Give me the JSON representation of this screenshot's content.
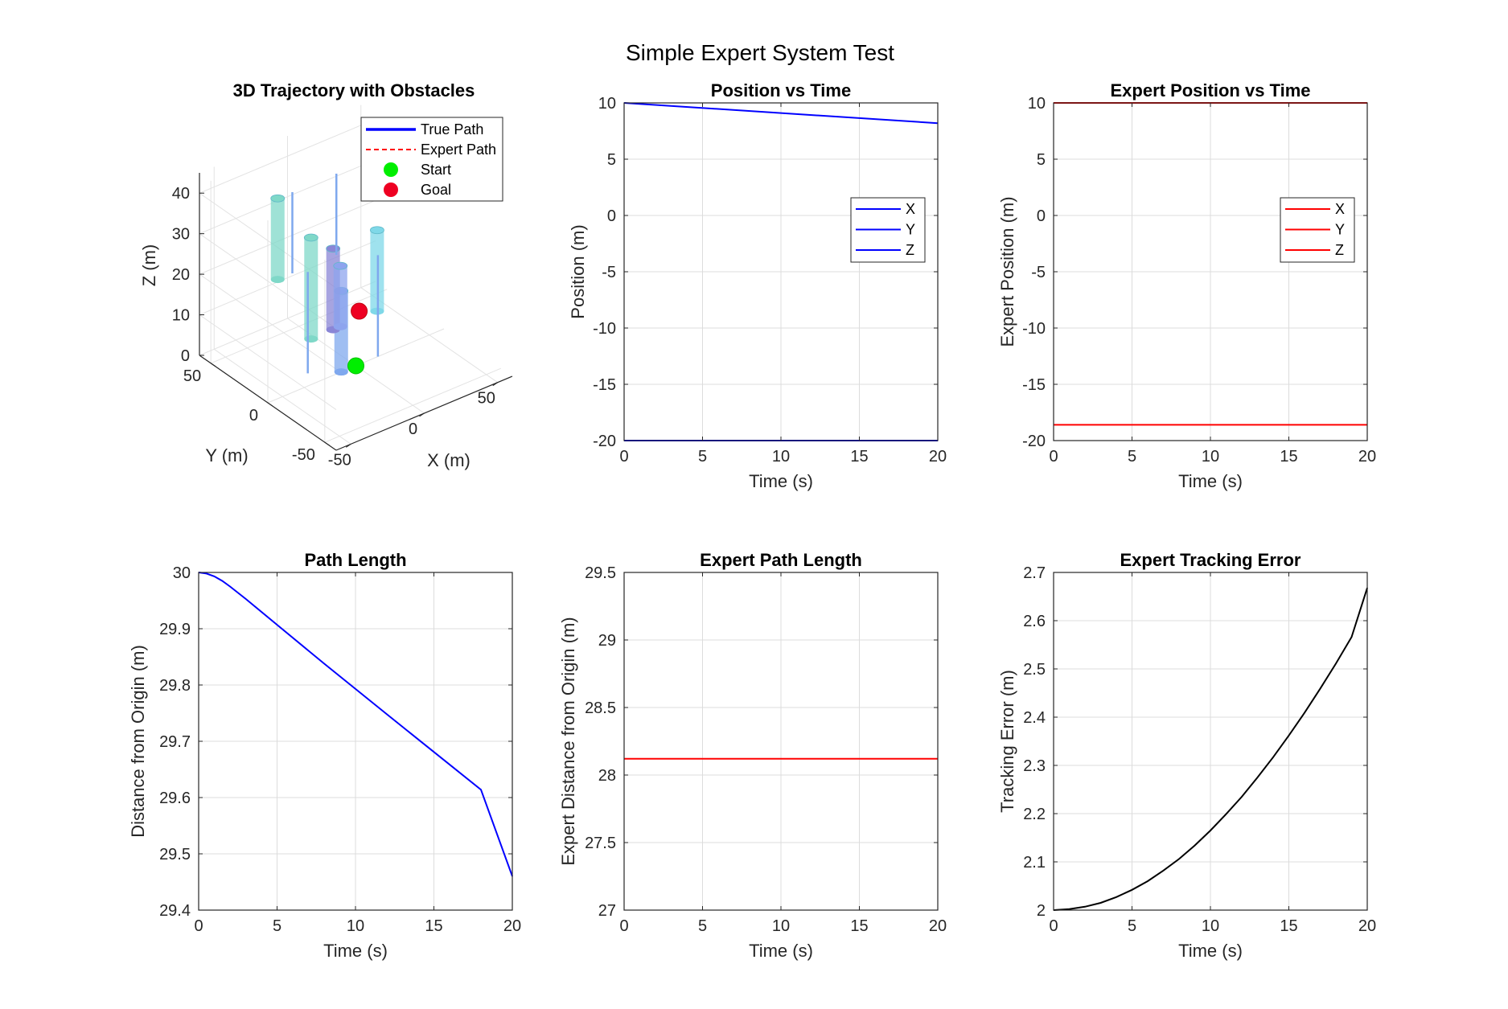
{
  "figure": {
    "suptitle": "Simple Expert System Test"
  },
  "chart_data": [
    {
      "id": "traj3d",
      "type": "scatter",
      "title": "3D Trajectory with Obstacles",
      "xlabel": "X (m)",
      "ylabel": "Y (m)",
      "zlabel": "Z (m)",
      "xticks": [
        "-50",
        "0",
        "50"
      ],
      "yticks": [
        "-50",
        "0",
        "50"
      ],
      "zticks": [
        "0",
        "10",
        "20",
        "30",
        "40"
      ],
      "xlim": [
        -60,
        60
      ],
      "ylim": [
        -60,
        60
      ],
      "zlim": [
        0,
        45
      ],
      "grid": true,
      "legend_position": "top-right",
      "legend": [
        {
          "label": "True Path",
          "style": "solid",
          "color": "#0000ff"
        },
        {
          "label": "Expert Path",
          "style": "dashed",
          "color": "#ff0000"
        },
        {
          "label": "Start",
          "style": "marker",
          "color": "#00ee00"
        },
        {
          "label": "Goal",
          "style": "marker",
          "color": "#ee0022"
        }
      ],
      "start": {
        "x": 0,
        "y": 0,
        "z": 0
      },
      "goal": {
        "x": 10,
        "y": 10,
        "z": 10
      },
      "obstacles": [
        {
          "x": -30,
          "y": 30,
          "z0": 20,
          "z1": 40,
          "color": "#7fd8c8"
        },
        {
          "x": -15,
          "y": 20,
          "z0": 5,
          "z1": 30,
          "color": "#7fd8c8"
        },
        {
          "x": -10,
          "y": 0,
          "z0": 0,
          "z1": 20,
          "color": "#7fa8ee"
        },
        {
          "x": 0,
          "y": 20,
          "z0": 5,
          "z1": 25,
          "color": "#8a86d6"
        },
        {
          "x": 5,
          "y": 20,
          "z0": 5,
          "z1": 20,
          "color": "#8ea4ee"
        },
        {
          "x": 30,
          "y": 20,
          "z0": 5,
          "z1": 25,
          "color": "#7fd8e8"
        },
        {
          "x": -20,
          "y": 30,
          "z0": 20,
          "z1": 40,
          "color": "#7fa8ee"
        },
        {
          "x": -25,
          "y": 10,
          "z0": 0,
          "z1": 25,
          "color": "#7fa8ee"
        },
        {
          "x": 15,
          "y": 0,
          "z0": 0,
          "z1": 25,
          "color": "#7fa8ee"
        },
        {
          "x": 10,
          "y": 30,
          "z0": 20,
          "z1": 40,
          "color": "#7fa8ee"
        }
      ]
    },
    {
      "id": "pos",
      "type": "line",
      "title": "Position vs Time",
      "xlabel": "Time (s)",
      "ylabel": "Position (m)",
      "xlim": [
        0,
        20
      ],
      "ylim": [
        -20,
        10
      ],
      "xticks": [
        0,
        5,
        10,
        15,
        20
      ],
      "yticks": [
        -20,
        -15,
        -10,
        -5,
        0,
        5,
        10
      ],
      "grid": true,
      "legend_position": "right",
      "series": [
        {
          "name": "X",
          "color": "#0000ff",
          "x": [
            0,
            20
          ],
          "y": [
            10,
            8.2
          ]
        },
        {
          "name": "Y",
          "color": "#0000ff",
          "x": [
            0,
            20
          ],
          "y": [
            -20,
            -20
          ]
        },
        {
          "name": "Z",
          "color": "#0000ff",
          "x": [
            0,
            20
          ],
          "y": [
            -20,
            -20
          ]
        }
      ]
    },
    {
      "id": "exppos",
      "type": "line",
      "title": "Expert Position vs Time",
      "xlabel": "Time (s)",
      "ylabel": "Expert Position (m)",
      "xlim": [
        0,
        20
      ],
      "ylim": [
        -20,
        10
      ],
      "xticks": [
        0,
        5,
        10,
        15,
        20
      ],
      "yticks": [
        -20,
        -15,
        -10,
        -5,
        0,
        5,
        10
      ],
      "grid": true,
      "legend_position": "right",
      "series": [
        {
          "name": "X",
          "color": "#ff0000",
          "x": [
            0,
            20
          ],
          "y": [
            10,
            10
          ]
        },
        {
          "name": "Y",
          "color": "#ff0000",
          "x": [
            0,
            20
          ],
          "y": [
            -18.6,
            -18.6
          ]
        },
        {
          "name": "Z",
          "color": "#ff0000",
          "x": [
            0,
            20
          ],
          "y": [
            10,
            10
          ]
        }
      ]
    },
    {
      "id": "pathlen",
      "type": "line",
      "title": "Path Length",
      "xlabel": "Time (s)",
      "ylabel": "Distance from Origin (m)",
      "xlim": [
        0,
        20
      ],
      "ylim": [
        29.4,
        30
      ],
      "xticks": [
        0,
        5,
        10,
        15,
        20
      ],
      "yticks": [
        29.4,
        29.5,
        29.6,
        29.7,
        29.8,
        29.9,
        30
      ],
      "grid": true,
      "series": [
        {
          "name": "",
          "color": "#0000ff",
          "x": [
            0,
            0.5,
            1,
            1.5,
            2,
            3,
            5,
            8,
            10,
            12,
            15,
            18,
            20
          ],
          "y": [
            30,
            29.998,
            29.993,
            29.985,
            29.975,
            29.953,
            29.907,
            29.838,
            29.793,
            29.748,
            29.681,
            29.614,
            29.46
          ]
        }
      ]
    },
    {
      "id": "exppathlen",
      "type": "line",
      "title": "Expert Path Length",
      "xlabel": "Time (s)",
      "ylabel": "Expert Distance from Origin (m)",
      "xlim": [
        0,
        20
      ],
      "ylim": [
        27,
        29.5
      ],
      "xticks": [
        0,
        5,
        10,
        15,
        20
      ],
      "yticks": [
        27,
        27.5,
        28,
        28.5,
        29,
        29.5
      ],
      "grid": true,
      "series": [
        {
          "name": "",
          "color": "#ff0000",
          "x": [
            0,
            20
          ],
          "y": [
            28.12,
            28.12
          ]
        }
      ]
    },
    {
      "id": "trackerr",
      "type": "line",
      "title": "Expert Tracking Error",
      "xlabel": "Time (s)",
      "ylabel": "Tracking Error (m)",
      "xlim": [
        0,
        20
      ],
      "ylim": [
        2,
        2.7
      ],
      "xticks": [
        0,
        5,
        10,
        15,
        20
      ],
      "yticks": [
        2,
        2.1,
        2.2,
        2.3,
        2.4,
        2.5,
        2.6,
        2.7
      ],
      "grid": true,
      "series": [
        {
          "name": "",
          "color": "#000000",
          "x": [
            0,
            1,
            2,
            3,
            4,
            5,
            6,
            7,
            8,
            9,
            10,
            11,
            12,
            13,
            14,
            15,
            16,
            17,
            18,
            19,
            20
          ],
          "y": [
            2.0,
            2.002,
            2.007,
            2.015,
            2.027,
            2.042,
            2.06,
            2.082,
            2.106,
            2.134,
            2.165,
            2.199,
            2.235,
            2.275,
            2.317,
            2.362,
            2.409,
            2.459,
            2.511,
            2.566,
            2.668
          ]
        }
      ]
    }
  ]
}
